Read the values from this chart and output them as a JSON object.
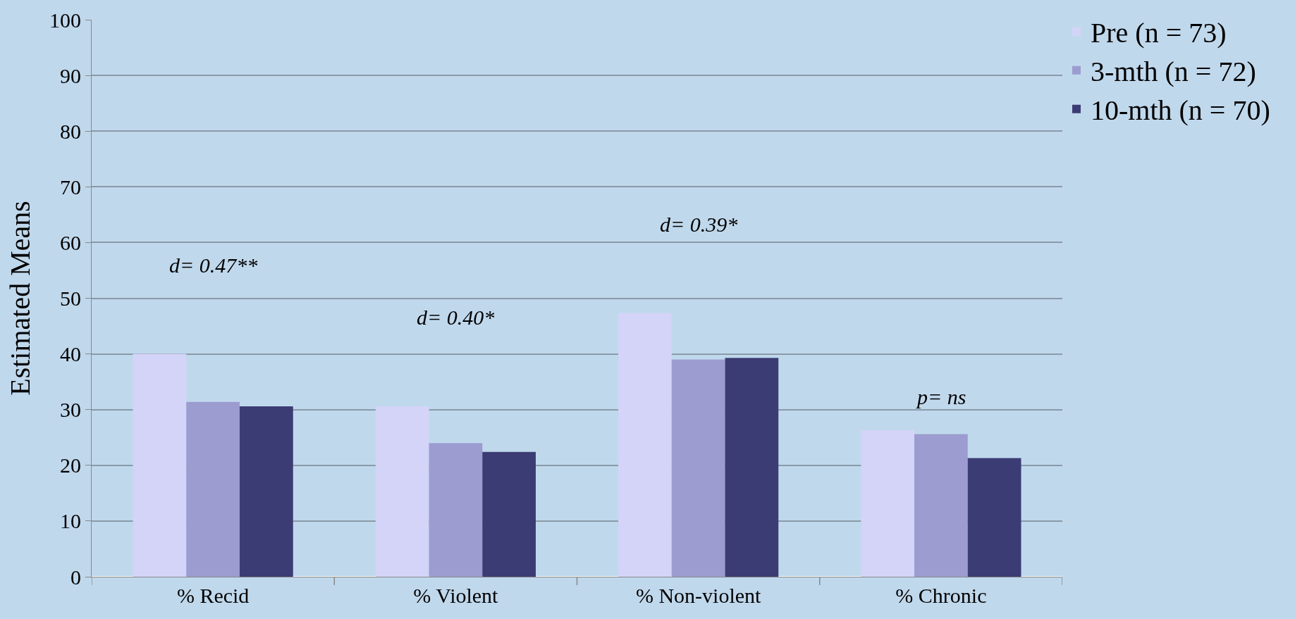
{
  "chart_data": {
    "type": "bar",
    "ylabel": "Estimated Means",
    "categories": [
      "% Recid",
      "% Violent",
      "% Non-violent",
      "% Chronic"
    ],
    "series": [
      {
        "name": "Pre (n = 73)",
        "color": "#d4d4f8",
        "values": [
          40,
          30.6,
          47.3,
          26.3
        ]
      },
      {
        "name": "3-mth (n = 72)",
        "color": "#9c9cd0",
        "values": [
          31.4,
          24.0,
          39.0,
          25.6
        ]
      },
      {
        "name": "10-mth (n = 70)",
        "color": "#3c3c74",
        "values": [
          30.6,
          22.4,
          39.3,
          21.3
        ]
      }
    ],
    "ylim": [
      0,
      100
    ],
    "yticks": [
      0,
      10,
      20,
      30,
      40,
      50,
      60,
      70,
      80,
      90,
      100
    ],
    "grid": "y",
    "legend": "top right",
    "annotations": [
      "d= 0.47**",
      "d= 0.40*",
      "d= 0.39*",
      "p= ns"
    ]
  }
}
